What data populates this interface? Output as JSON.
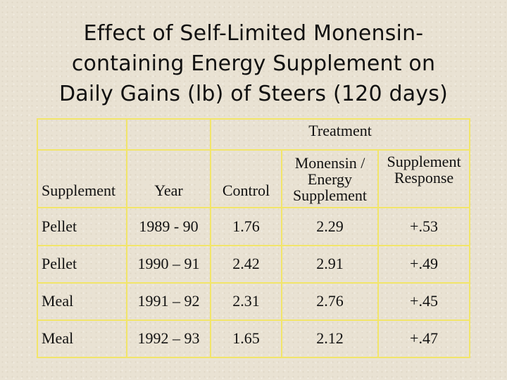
{
  "title": {
    "line1": "Effect of Self-Limited Monensin-",
    "line2": "containing Energy Supplement on",
    "line3": "Daily Gains (lb) of Steers (120 days)"
  },
  "table": {
    "group_header": "Treatment",
    "columns": {
      "supplement": "Supplement",
      "year": "Year",
      "control": "Control",
      "monensin_line1": "Monensin /",
      "monensin_line2": "Energy",
      "monensin_line3": "Supplement",
      "response_line1": "Supplement",
      "response_line2": "Response"
    },
    "rows": [
      {
        "supplement": "Pellet",
        "year": "1989 - 90",
        "control": "1.76",
        "monensin": "2.29",
        "response": "+.53"
      },
      {
        "supplement": "Pellet",
        "year": "1990 – 91",
        "control": "2.42",
        "monensin": "2.91",
        "response": "+.49"
      },
      {
        "supplement": "Meal",
        "year": "1991 – 92",
        "control": "2.31",
        "monensin": "2.76",
        "response": "+.45"
      },
      {
        "supplement": "Meal",
        "year": "1992 – 93",
        "control": "1.65",
        "monensin": "2.12",
        "response": "+.47"
      }
    ]
  }
}
